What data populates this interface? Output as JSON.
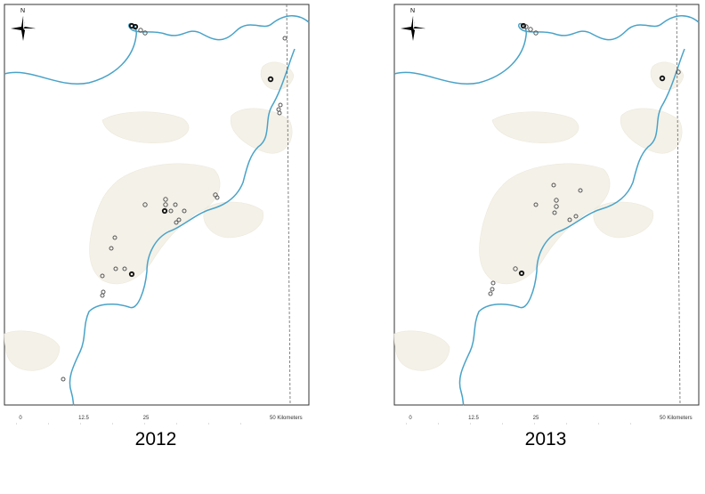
{
  "panels": [
    {
      "north": "N",
      "scale_labels": [
        "0",
        "12.5",
        "25",
        "50 Kilometers"
      ],
      "label": "2012"
    },
    {
      "north": "N",
      "scale_labels": [
        "0",
        "12.5",
        "25",
        "50 Kilometers"
      ],
      "label": "2013"
    }
  ]
}
